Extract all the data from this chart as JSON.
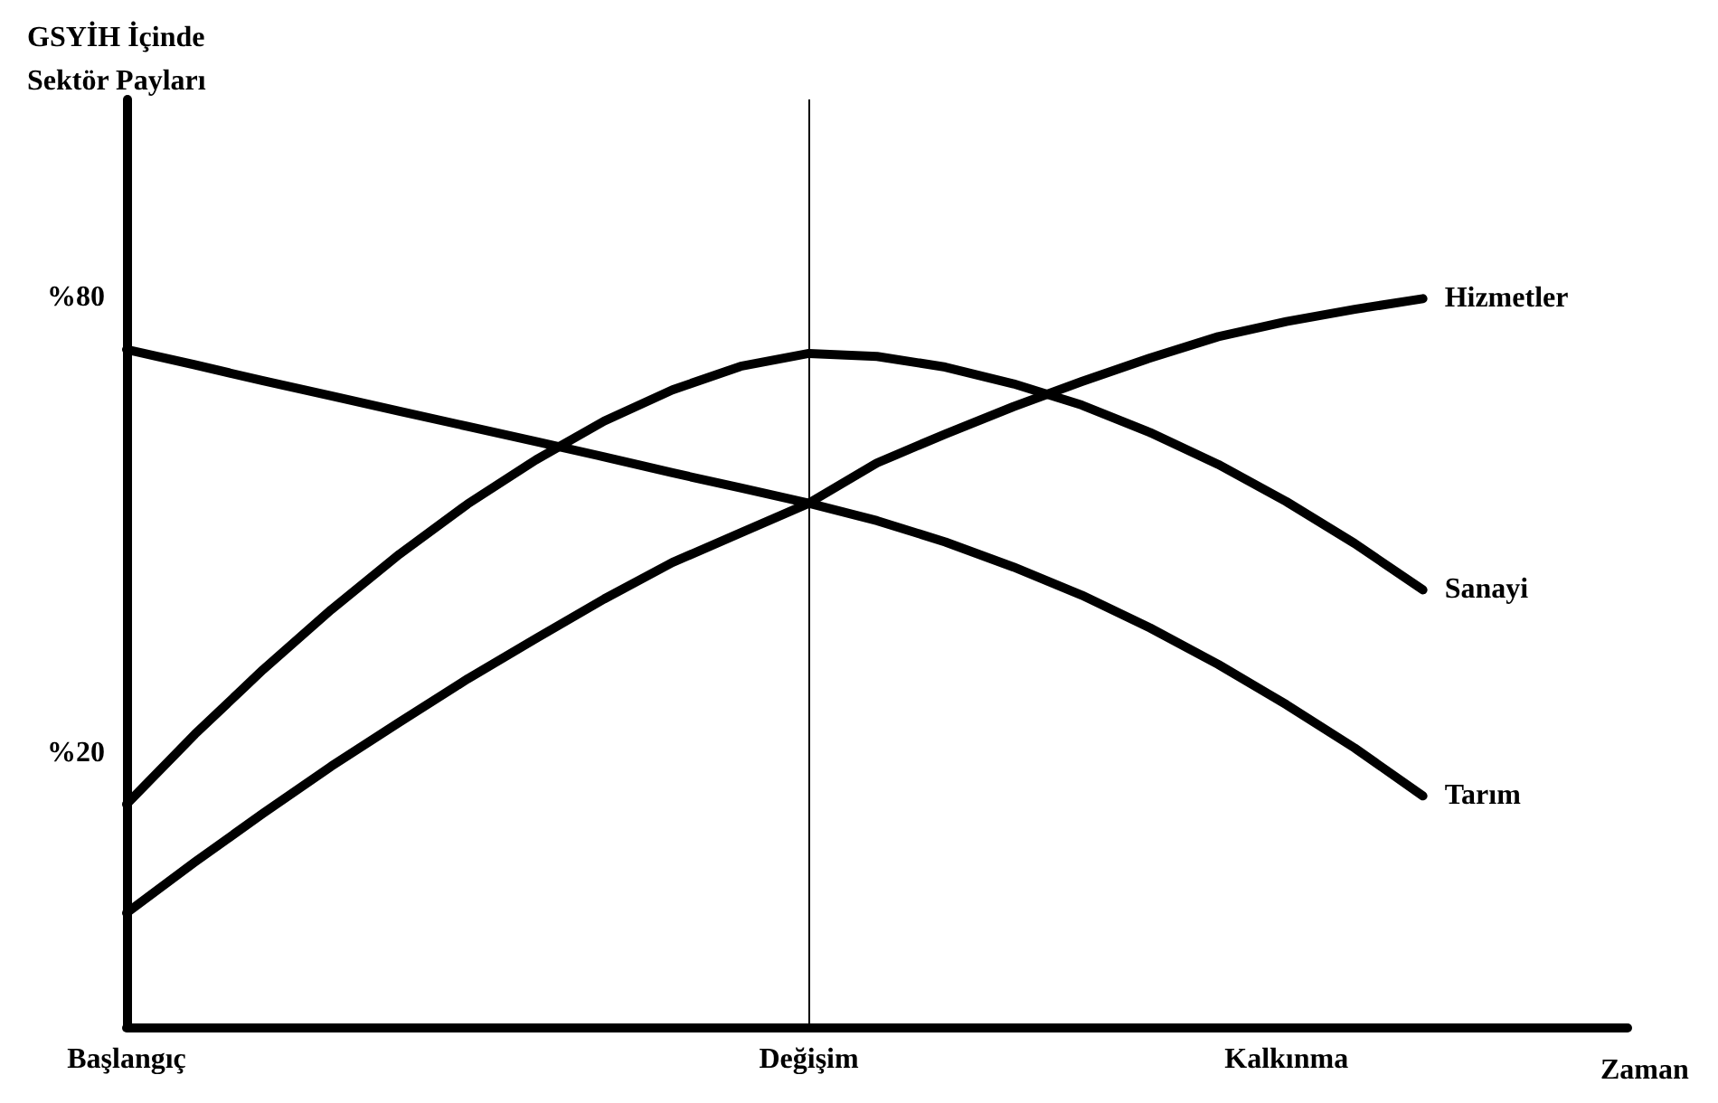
{
  "chart_data": {
    "type": "line",
    "ylabel": "GSYİH İçinde Sektör Payları",
    "xlabel": "Zaman",
    "categories": [
      "Başlangıç",
      null,
      null,
      null,
      null,
      null,
      null,
      null,
      null,
      null,
      "Değişim",
      null,
      null,
      null,
      null,
      null,
      null,
      "Kalkınma",
      null,
      null,
      null,
      null,
      null
    ],
    "series": [
      {
        "name": "Hizmetler",
        "color": "#000000",
        "values": [
          -1.0,
          5.7,
          12.1,
          18.3,
          24.1,
          29.8,
          35.1,
          40.3,
          45.1,
          49.0,
          52.9,
          58.2,
          62.0,
          65.6,
          68.9,
          72.0,
          74.8,
          76.8,
          78.4,
          79.8,
          null,
          null,
          null
        ]
      },
      {
        "name": "Sanayi",
        "color": "#000000",
        "values": [
          13.3,
          22.5,
          31.0,
          38.9,
          46.2,
          52.8,
          58.6,
          63.7,
          67.8,
          70.9,
          72.6,
          72.2,
          70.8,
          68.6,
          65.8,
          62.2,
          58.0,
          53.1,
          47.6,
          41.5,
          null,
          null,
          null
        ]
      },
      {
        "name": "Tarım",
        "color": "#000000",
        "values": [
          73.1,
          71.1,
          69.0,
          67.0,
          65.0,
          63.0,
          61.0,
          59.0,
          56.9,
          54.9,
          52.9,
          50.6,
          47.8,
          44.5,
          40.8,
          36.5,
          31.7,
          26.4,
          20.7,
          14.4,
          null,
          null,
          null
        ]
      }
    ],
    "ylim": [
      -16,
      106
    ],
    "yticks": [
      {
        "value": 80,
        "label": "%80"
      },
      {
        "value": 20,
        "label": "%20"
      }
    ],
    "ref_lines": [
      {
        "axis": "x",
        "value": "Değişim",
        "color": "#000000"
      }
    ],
    "grid": false,
    "legend": false,
    "marker": "none",
    "line_style": "solid"
  }
}
